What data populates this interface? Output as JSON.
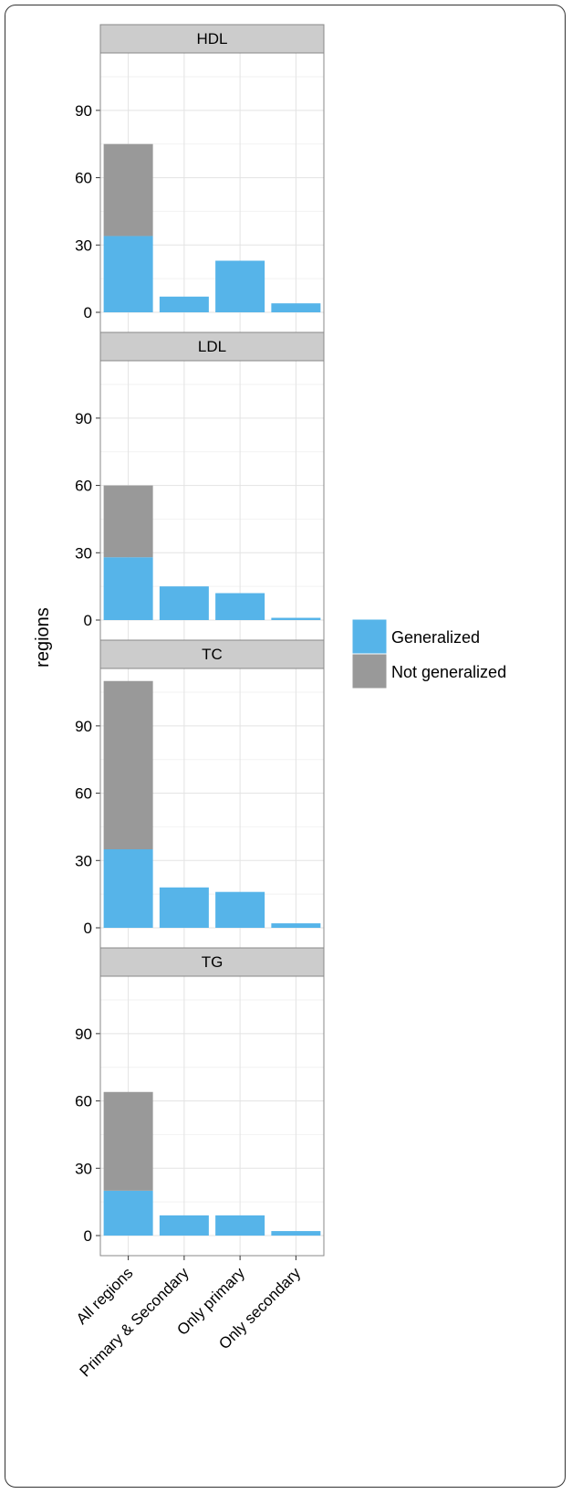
{
  "chart_data": {
    "type": "bar",
    "stacked": true,
    "ylabel": "regions",
    "xlabel": "",
    "categories": [
      "All regions",
      "Primary & Secondary",
      "Only primary",
      "Only secondary"
    ],
    "y_ticks": [
      0,
      30,
      60,
      90
    ],
    "ylim": [
      0,
      113
    ],
    "grid": true,
    "legend_position": "right",
    "series_names": [
      "Generalized",
      "Not generalized"
    ],
    "colors": {
      "Generalized": "#56b4e9",
      "Not generalized": "#999999"
    },
    "panels": [
      {
        "title": "HDL",
        "series": [
          {
            "name": "Generalized",
            "values": [
              34,
              7,
              23,
              4
            ]
          },
          {
            "name": "Not generalized",
            "values": [
              41,
              0,
              0,
              0
            ]
          }
        ]
      },
      {
        "title": "LDL",
        "series": [
          {
            "name": "Generalized",
            "values": [
              28,
              15,
              12,
              1
            ]
          },
          {
            "name": "Not generalized",
            "values": [
              32,
              0,
              0,
              0
            ]
          }
        ]
      },
      {
        "title": "TC",
        "series": [
          {
            "name": "Generalized",
            "values": [
              35,
              18,
              16,
              2
            ]
          },
          {
            "name": "Not generalized",
            "values": [
              75,
              0,
              0,
              0
            ]
          }
        ]
      },
      {
        "title": "TG",
        "series": [
          {
            "name": "Generalized",
            "values": [
              20,
              9,
              9,
              2
            ]
          },
          {
            "name": "Not generalized",
            "values": [
              44,
              0,
              0,
              0
            ]
          }
        ]
      }
    ]
  }
}
